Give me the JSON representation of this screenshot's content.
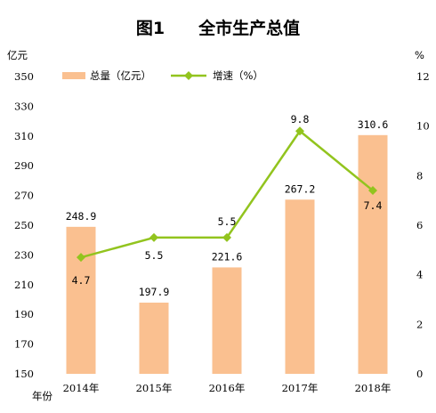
{
  "chart_data": {
    "type": "bar",
    "title": "图1　　全市生产总值",
    "y_left_unit": "亿元",
    "y_right_unit": "%",
    "x_axis_unit": "年份",
    "categories": [
      "2014年",
      "2015年",
      "2016年",
      "2017年",
      "2018年"
    ],
    "ylim_left": [
      150,
      350
    ],
    "y_left_ticks": [
      150,
      170,
      190,
      210,
      230,
      250,
      270,
      290,
      310,
      330,
      350
    ],
    "ylim_right": [
      0,
      12
    ],
    "y_right_ticks": [
      0,
      2,
      4,
      6,
      8,
      10,
      12
    ],
    "series": [
      {
        "name": "总量（亿元）",
        "type": "bar",
        "axis": "left",
        "color": "#FAC090",
        "values": [
          248.9,
          197.9,
          221.6,
          267.2,
          310.6
        ],
        "labels": [
          "248.9",
          "197.9",
          "221.6",
          "267.2",
          "310.6"
        ]
      },
      {
        "name": "增速（%）",
        "type": "line",
        "axis": "right",
        "color": "#92C41E",
        "values": [
          4.7,
          5.5,
          5.5,
          9.8,
          7.4
        ],
        "labels": [
          "4.7",
          "5.5",
          "5.5",
          "9.8",
          "7.4"
        ]
      }
    ],
    "legend_position": "top-left",
    "grid": false
  }
}
